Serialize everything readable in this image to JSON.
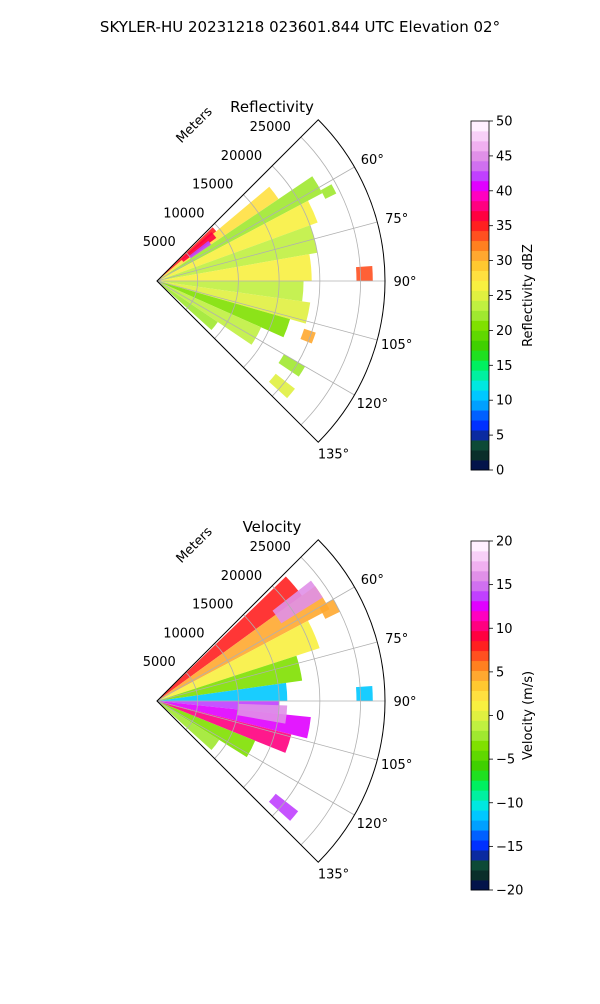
{
  "figure": {
    "suptitle": "SKYLER-HU  20231218  023601.844 UTC Elevation 02°"
  },
  "chart_data": [
    {
      "type": "heatmap",
      "projection": "polar-sector",
      "title": "Reflectivity",
      "radial_label": "Meters",
      "radial_ticks": [
        5000,
        10000,
        15000,
        20000,
        25000
      ],
      "radial_tick_labels": [
        "5000",
        "10000",
        "15000",
        "20000",
        "25000"
      ],
      "r_max": 28000,
      "azimuth_range_deg": [
        45,
        135
      ],
      "azimuth_ticks": [
        60,
        75,
        90,
        105,
        120,
        135
      ],
      "azimuth_tick_labels": [
        "60°",
        "75°",
        "90°",
        "105°",
        "120°",
        "135°"
      ],
      "grid": true,
      "colorbar": {
        "label": "Reflectivity dBZ",
        "range": [
          0,
          50
        ],
        "ticks": [
          0,
          5,
          10,
          15,
          20,
          25,
          30,
          35,
          40,
          45,
          50
        ],
        "tick_labels": [
          "0",
          "5",
          "10",
          "15",
          "20",
          "25",
          "30",
          "35",
          "40",
          "45",
          "50"
        ],
        "colors": [
          "#03134a",
          "#0a2e2a",
          "#0d4a36",
          "#0a2aa0",
          "#0030ff",
          "#0060ff",
          "#00a0ff",
          "#00c8ff",
          "#00e8e0",
          "#00f0a0",
          "#00f060",
          "#20e020",
          "#40d000",
          "#60d800",
          "#80e000",
          "#a0e830",
          "#c0f040",
          "#e0f040",
          "#f8f040",
          "#ffe040",
          "#ffc830",
          "#ffa830",
          "#ff8020",
          "#ff5020",
          "#ff2020",
          "#ff0040",
          "#ff0080",
          "#ff00c0",
          "#e000ff",
          "#c040ff",
          "#d070f0",
          "#e090e8",
          "#f0b0f0",
          "#f8d0f8",
          "#fff0ff"
        ]
      },
      "sectors": [
        {
          "az": [
            46,
            50
          ],
          "r": [
            0,
            9500
          ],
          "value": 35
        },
        {
          "az": [
            50,
            56
          ],
          "r": [
            0,
            18000
          ],
          "value": 28
        },
        {
          "az": [
            56,
            62
          ],
          "r": [
            0,
            23000
          ],
          "value": 22
        },
        {
          "az": [
            62,
            70
          ],
          "r": [
            0,
            21000
          ],
          "value": 26
        },
        {
          "az": [
            70,
            80
          ],
          "r": [
            0,
            20000
          ],
          "value": 24
        },
        {
          "az": [
            80,
            90
          ],
          "r": [
            0,
            19000
          ],
          "value": 27
        },
        {
          "az": [
            90,
            98
          ],
          "r": [
            0,
            18000
          ],
          "value": 23
        },
        {
          "az": [
            98,
            106
          ],
          "r": [
            0,
            19000
          ],
          "value": 25
        },
        {
          "az": [
            106,
            114
          ],
          "r": [
            0,
            17000
          ],
          "value": 21
        },
        {
          "az": [
            114,
            124
          ],
          "r": [
            0,
            14000
          ],
          "value": 24
        },
        {
          "az": [
            124,
            132
          ],
          "r": [
            0,
            9000
          ],
          "value": 22
        },
        {
          "az": [
            48,
            54
          ],
          "r": [
            4000,
            9000
          ],
          "value": 37
        },
        {
          "az": [
            52,
            56
          ],
          "r": [
            5000,
            8000
          ],
          "value": 42
        },
        {
          "az": [
            86,
            90
          ],
          "r": [
            24500,
            26500
          ],
          "value": 34
        },
        {
          "az": [
            61,
            64
          ],
          "r": [
            23000,
            24500
          ],
          "value": 22
        },
        {
          "az": [
            108,
            112
          ],
          "r": [
            19000,
            20500
          ],
          "value": 30
        },
        {
          "az": [
            120,
            124
          ],
          "r": [
            18000,
            21000
          ],
          "value": 22
        },
        {
          "az": [
            128,
            132
          ],
          "r": [
            18500,
            21500
          ],
          "value": 25
        }
      ]
    },
    {
      "type": "heatmap",
      "projection": "polar-sector",
      "title": "Velocity",
      "radial_label": "Meters",
      "radial_ticks": [
        5000,
        10000,
        15000,
        20000,
        25000
      ],
      "radial_tick_labels": [
        "5000",
        "10000",
        "15000",
        "20000",
        "25000"
      ],
      "r_max": 28000,
      "azimuth_range_deg": [
        45,
        135
      ],
      "azimuth_ticks": [
        60,
        75,
        90,
        105,
        120,
        135
      ],
      "azimuth_tick_labels": [
        "60°",
        "75°",
        "90°",
        "105°",
        "120°",
        "135°"
      ],
      "grid": true,
      "colorbar": {
        "label": "Velocity (m/s)",
        "range": [
          -20,
          20
        ],
        "ticks": [
          -20,
          -15,
          -10,
          -5,
          0,
          5,
          10,
          15,
          20
        ],
        "tick_labels": [
          "−20",
          "−15",
          "−10",
          "−5",
          "0",
          "5",
          "10",
          "15",
          "20"
        ],
        "colors": [
          "#03134a",
          "#0a2e2a",
          "#0d4a36",
          "#0a2aa0",
          "#0030ff",
          "#0060ff",
          "#00a0ff",
          "#00c8ff",
          "#00e8e0",
          "#00f0a0",
          "#00f060",
          "#20e020",
          "#40d000",
          "#60d800",
          "#80e000",
          "#a0e830",
          "#c0f040",
          "#e0f040",
          "#f8f040",
          "#ffe040",
          "#ffc830",
          "#ffa830",
          "#ff8020",
          "#ff5020",
          "#ff2020",
          "#ff0040",
          "#ff0080",
          "#ff00c0",
          "#e000ff",
          "#c040ff",
          "#d070f0",
          "#e090e8",
          "#f0b0f0",
          "#f8d0f8",
          "#fff0ff"
        ]
      },
      "sectors": [
        {
          "az": [
            46,
            54
          ],
          "r": [
            0,
            22000
          ],
          "value": 8
        },
        {
          "az": [
            54,
            62
          ],
          "r": [
            0,
            24000
          ],
          "value": 4
        },
        {
          "az": [
            62,
            72
          ],
          "r": [
            0,
            21000
          ],
          "value": 1
        },
        {
          "az": [
            72,
            82
          ],
          "r": [
            0,
            18000
          ],
          "value": -4
        },
        {
          "az": [
            82,
            90
          ],
          "r": [
            0,
            16000
          ],
          "value": -11
        },
        {
          "az": [
            90,
            96
          ],
          "r": [
            0,
            15000
          ],
          "value": 14
        },
        {
          "az": [
            96,
            104
          ],
          "r": [
            0,
            19000
          ],
          "value": 12
        },
        {
          "az": [
            104,
            112
          ],
          "r": [
            0,
            17000
          ],
          "value": 10
        },
        {
          "az": [
            112,
            122
          ],
          "r": [
            0,
            13000
          ],
          "value": -3
        },
        {
          "az": [
            122,
            132
          ],
          "r": [
            0,
            9000
          ],
          "value": -2
        },
        {
          "az": [
            52,
            58
          ],
          "r": [
            18000,
            24000
          ],
          "value": 16
        },
        {
          "az": [
            60,
            64
          ],
          "r": [
            23000,
            25000
          ],
          "value": 4
        },
        {
          "az": [
            86,
            90
          ],
          "r": [
            24500,
            26500
          ],
          "value": -11
        },
        {
          "az": [
            92,
            100
          ],
          "r": [
            10000,
            16000
          ],
          "value": 16
        },
        {
          "az": [
            128,
            132
          ],
          "r": [
            18500,
            22000
          ],
          "value": 14
        }
      ]
    }
  ]
}
